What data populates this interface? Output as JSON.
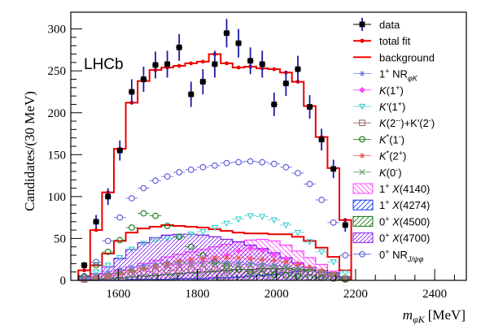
{
  "chart_data": {
    "type": "histogram",
    "experiment_label": "LHCb",
    "xlabel": "m_{φK} [MeV]",
    "xlabel_parts": {
      "main": "m",
      "sub": "φK",
      "unit": "[MeV]"
    },
    "ylabel": "Candidates/(30 MeV)",
    "xlim": [
      1480,
      2480
    ],
    "ylim": [
      0,
      320
    ],
    "xticks": [
      1600,
      1800,
      2000,
      2200,
      2400
    ],
    "yticks": [
      0,
      50,
      100,
      150,
      200,
      250,
      300
    ],
    "grid": false,
    "legend_position": "right",
    "bin_width": 30,
    "bin_edges": [
      1499,
      1529,
      1559,
      1589,
      1619,
      1649,
      1679,
      1709,
      1739,
      1769,
      1799,
      1829,
      1859,
      1889,
      1919,
      1949,
      1979,
      2009,
      2039,
      2069,
      2099,
      2129,
      2159,
      2189
    ],
    "data": {
      "name": "data",
      "x": [
        1514,
        1544,
        1574,
        1604,
        1634,
        1664,
        1694,
        1724,
        1754,
        1784,
        1814,
        1844,
        1874,
        1904,
        1934,
        1964,
        1994,
        2024,
        2054,
        2084,
        2114,
        2144,
        2174
      ],
      "y": [
        18,
        70,
        100,
        155,
        225,
        240,
        257,
        258,
        278,
        222,
        237,
        258,
        295,
        283,
        262,
        258,
        210,
        235,
        252,
        207,
        168,
        133,
        66
      ],
      "err": [
        4,
        8,
        10,
        12,
        15,
        15,
        16,
        16,
        16,
        15,
        15,
        16,
        17,
        17,
        16,
        16,
        14,
        15,
        16,
        14,
        13,
        11,
        8
      ]
    },
    "total_fit": {
      "name": "total fit",
      "x": [
        1514,
        1544,
        1574,
        1604,
        1634,
        1664,
        1694,
        1724,
        1754,
        1784,
        1814,
        1844,
        1874,
        1904,
        1934,
        1964,
        1994,
        2024,
        2054,
        2084,
        2114,
        2144,
        2174
      ],
      "y": [
        12,
        60,
        105,
        157,
        212,
        238,
        251,
        254,
        256,
        259,
        261,
        270,
        259,
        254,
        255,
        253,
        252,
        248,
        237,
        208,
        171,
        134,
        72
      ]
    },
    "background": {
      "name": "background",
      "x": [
        1514,
        1544,
        1574,
        1604,
        1634,
        1664,
        1694,
        1724,
        1754,
        1784,
        1814,
        1844,
        1874,
        1904,
        1934,
        1964,
        1994,
        2024,
        2054,
        2084,
        2114,
        2144,
        2174
      ],
      "y": [
        5,
        18,
        32,
        47,
        57,
        62,
        64,
        66,
        65,
        64,
        63,
        61,
        59,
        57,
        56,
        56,
        55,
        55,
        52,
        47,
        39,
        28,
        12
      ]
    },
    "components": [
      {
        "name": "1+ NR_φK",
        "legend_parts": {
          "main": "1",
          "sup": "+",
          "mid": " NR",
          "sub": "φK"
        },
        "style": "markers",
        "color": "#7777ee",
        "marker": "star",
        "y": [
          2,
          6,
          10,
          13,
          16,
          18,
          20,
          21,
          22,
          22,
          22,
          22,
          21,
          21,
          20,
          19,
          18,
          17,
          15,
          13,
          10,
          7,
          3
        ]
      },
      {
        "name": "K(1+)",
        "legend_parts": {
          "main": "K",
          "mid": "(1",
          "sup": "+",
          "post": ")"
        },
        "style": "markers",
        "color": "#ff44ff",
        "marker": "diamond",
        "y": [
          1,
          3,
          6,
          9,
          12,
          14,
          16,
          18,
          19,
          20,
          22,
          25,
          30,
          35,
          38,
          36,
          31,
          26,
          20,
          15,
          10,
          6,
          2
        ]
      },
      {
        "name": "K′(1+)",
        "legend_parts": {
          "main": "K′",
          "mid": "(1",
          "sup": "+",
          "post": ")"
        },
        "style": "markers",
        "color": "#33cccc",
        "marker": "triangle-down",
        "y": [
          3,
          10,
          18,
          27,
          37,
          44,
          48,
          50,
          52,
          55,
          58,
          63,
          68,
          73,
          77,
          76,
          72,
          66,
          57,
          46,
          34,
          22,
          9
        ]
      },
      {
        "name": "K(2−)+K′(2−)",
        "legend_parts": {
          "main": "K",
          "mid": "(2",
          "sup": "-",
          "post": ")+K′(2",
          "sup2": "-",
          "post2": ")"
        },
        "style": "markers",
        "color": "#996666",
        "marker": "square-open",
        "y": [
          1,
          3,
          5,
          7,
          9,
          10,
          11,
          12,
          12,
          13,
          13,
          13,
          13,
          13,
          13,
          13,
          13,
          12,
          11,
          10,
          8,
          5,
          2
        ]
      },
      {
        "name": "K*(1−)",
        "legend_parts": {
          "main": "K",
          "sup": "*",
          "mid": "(1",
          "sup2": "-",
          "post": ")"
        },
        "style": "markers",
        "color": "#117711",
        "marker": "circle-open",
        "y": [
          5,
          18,
          34,
          48,
          63,
          80,
          77,
          65,
          52,
          40,
          30,
          22,
          17,
          13,
          10,
          8,
          7,
          6,
          5,
          4,
          3,
          2,
          1
        ]
      },
      {
        "name": "K*(2+)",
        "legend_parts": {
          "main": "K",
          "sup": "*",
          "mid": "(2",
          "sup2": "+",
          "post": ")"
        },
        "style": "markers",
        "color": "#ee5555",
        "marker": "star",
        "y": [
          1,
          3,
          5,
          8,
          11,
          14,
          17,
          20,
          23,
          25,
          26,
          27,
          27,
          27,
          26,
          25,
          24,
          22,
          19,
          16,
          12,
          8,
          3
        ]
      },
      {
        "name": "K(0−)",
        "legend_parts": {
          "main": "K",
          "mid": "(0",
          "sup": "-",
          "post": ")"
        },
        "style": "markers",
        "color": "#669966",
        "marker": "cross",
        "y": [
          1,
          3,
          6,
          9,
          12,
          15,
          17,
          19,
          20,
          20,
          20,
          20,
          20,
          19,
          19,
          18,
          17,
          16,
          15,
          13,
          10,
          7,
          3
        ]
      },
      {
        "name": "1+ X(4140)",
        "legend_parts": {
          "main": "1",
          "sup": "+",
          "mid": " X",
          "post": "(4140)"
        },
        "style": "hatch",
        "color": "#ff44ff",
        "hatch": "backslash",
        "y": [
          1,
          4,
          8,
          12,
          16,
          20,
          24,
          28,
          31,
          34,
          37,
          40,
          43,
          46,
          48,
          49,
          47,
          42,
          35,
          27,
          19,
          11,
          4
        ]
      },
      {
        "name": "1+ X(4274)",
        "legend_parts": {
          "main": "1",
          "sup": "+",
          "mid": " X",
          "post": "(4274)"
        },
        "style": "hatch",
        "color": "#1133ee",
        "hatch": "slash",
        "y": [
          0,
          0,
          0,
          0,
          1,
          1,
          1,
          1,
          2,
          2,
          2,
          3,
          3,
          4,
          5,
          6,
          7,
          9,
          11,
          13,
          12,
          9,
          4
        ]
      },
      {
        "name": "0+ X(4500)",
        "legend_parts": {
          "main": "0",
          "sup": "+",
          "mid": " X",
          "post": "(4500)"
        },
        "style": "hatch",
        "color": "#117711",
        "hatch": "slash",
        "y": [
          0,
          1,
          2,
          3,
          4,
          5,
          6,
          7,
          8,
          9,
          10,
          11,
          12,
          13,
          13,
          14,
          14,
          14,
          13,
          12,
          10,
          6,
          2
        ]
      },
      {
        "name": "0+ X(4700)",
        "legend_parts": {
          "main": "0",
          "sup": "+",
          "mid": " X",
          "post": "(4700)"
        },
        "style": "hatch",
        "color": "#8822ee",
        "hatch": "slash",
        "y": [
          2,
          8,
          16,
          26,
          37,
          45,
          51,
          54,
          55,
          55,
          54,
          52,
          49,
          46,
          42,
          38,
          33,
          27,
          21,
          15,
          10,
          5,
          2
        ]
      },
      {
        "name": "0+ NR_J/ψφ",
        "legend_parts": {
          "main": "0",
          "sup": "+",
          "mid": " NR",
          "sub": "J/ψφ"
        },
        "style": "markers",
        "color": "#5555dd",
        "marker": "circle-open",
        "y": [
          4,
          22,
          47,
          75,
          98,
          110,
          119,
          124,
          129,
          132,
          135,
          137,
          140,
          141,
          142,
          141,
          139,
          135,
          128,
          115,
          96,
          69,
          30
        ]
      }
    ]
  }
}
